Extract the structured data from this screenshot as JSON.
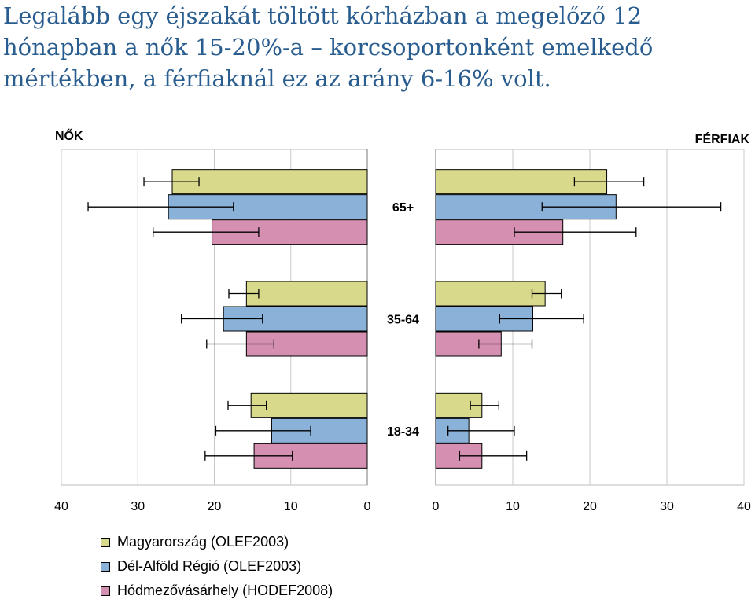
{
  "headline": {
    "line1": "Legalább egy éjszakát töltött kórházban a megelőző 12",
    "line2": "hónapban a nők 15-20%-a – korcsoportonként emelkedő",
    "line3": "mértékben, a férfiaknál ez az arány 6-16% volt."
  },
  "chart_data": {
    "type": "bar",
    "orientation": "horizontal",
    "panels": [
      "NŐK",
      "FÉRFIAK"
    ],
    "categories": [
      "65+",
      "35-64",
      "18-34"
    ],
    "xlim": [
      0,
      40
    ],
    "xticks": [
      0,
      10,
      20,
      30,
      40
    ],
    "grid": true,
    "legend_position": "bottom-left",
    "series": [
      {
        "name": "Magyarország (OLEF2003)",
        "color": "#d8d98a",
        "women": {
          "values": [
            25.5,
            15.8,
            15.2
          ],
          "err_low": [
            22,
            14.2,
            13.2
          ],
          "err_high": [
            29.2,
            18.1,
            18.2
          ]
        },
        "men": {
          "values": [
            22.2,
            14.2,
            6.0
          ],
          "err_low": [
            18,
            12.5,
            4.5
          ],
          "err_high": [
            27,
            16.3,
            8.2
          ]
        }
      },
      {
        "name": "Dél-Alföld Régió (OLEF2003)",
        "color": "#8ab2d8",
        "women": {
          "values": [
            26.0,
            18.8,
            12.5
          ],
          "err_low": [
            17.5,
            13.7,
            7.4
          ],
          "err_high": [
            36.5,
            24.3,
            19.8
          ]
        },
        "men": {
          "values": [
            23.4,
            12.6,
            4.3
          ],
          "err_low": [
            13.8,
            8.3,
            1.6
          ],
          "err_high": [
            37,
            19.2,
            10.2
          ]
        }
      },
      {
        "name": "Hódmezővásárhely (HODEF2008)",
        "color": "#d58fb0",
        "women": {
          "values": [
            20.3,
            15.8,
            14.8
          ],
          "err_low": [
            14.2,
            12.2,
            9.8
          ],
          "err_high": [
            28,
            21,
            21.2
          ]
        },
        "men": {
          "values": [
            16.5,
            8.5,
            6.0
          ],
          "err_low": [
            10.2,
            5.6,
            3.1
          ],
          "err_high": [
            26,
            12.5,
            11.8
          ]
        }
      }
    ]
  }
}
